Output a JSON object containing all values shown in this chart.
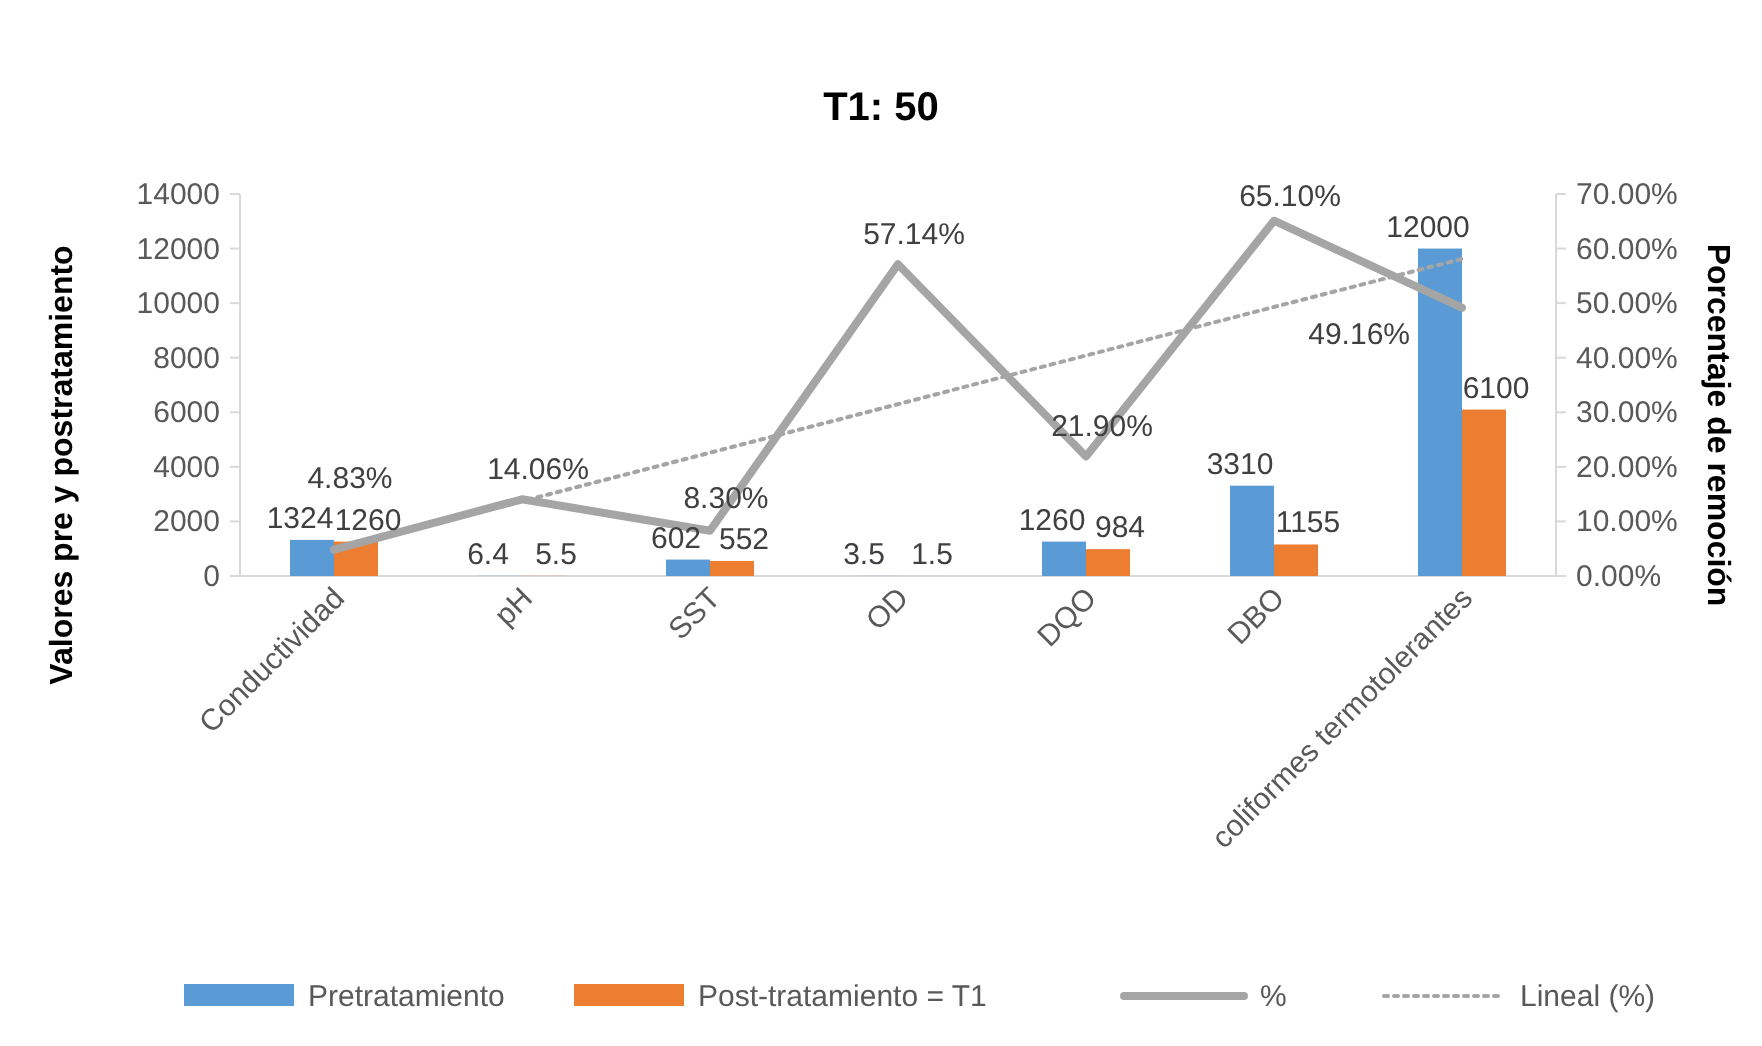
{
  "chart_data": {
    "type": "bar",
    "title": "T1: 50",
    "ylabel": "Valores pre y postratamiento",
    "y2label": "Porcentaje de remoción",
    "categories": [
      "Conductividad",
      "pH",
      "SST",
      "OD",
      "DQO",
      "DBO",
      "coliformes termotolerantes"
    ],
    "series": [
      {
        "name": "Pretratamiento",
        "color": "#5b9bd5",
        "values": [
          1324,
          6.4,
          602,
          3.5,
          1260,
          3310,
          12000
        ],
        "value_labels": [
          "1324",
          "6.4",
          "602",
          "3.5",
          "1260",
          "3310",
          "12000"
        ]
      },
      {
        "name": "Post-tratamiento = T1",
        "color": "#ed7d31",
        "values": [
          1260,
          5.5,
          552,
          1.5,
          984,
          1155,
          6100
        ],
        "value_labels": [
          "1260",
          "5.5",
          "552",
          "1.5",
          "984",
          "1155",
          "6100"
        ]
      },
      {
        "name": "%",
        "type": "line",
        "axis": "y2",
        "color": "#a5a5a5",
        "values": [
          4.83,
          14.06,
          8.3,
          57.14,
          21.9,
          65.1,
          49.16
        ],
        "value_labels": [
          "4.83%",
          "14.06%",
          "8.30%",
          "57.14%",
          "21.90%",
          "65.10%",
          "49.16%"
        ]
      },
      {
        "name": "Lineal (%)",
        "type": "line",
        "axis": "y2",
        "color": "#a5a5a5",
        "line_style": "dotted",
        "values": [
          4.9,
          13.7,
          22.6,
          31.5,
          40.4,
          49.3,
          58.1
        ]
      }
    ],
    "ylim": [
      0,
      14000
    ],
    "yticks": [
      0,
      2000,
      4000,
      6000,
      8000,
      10000,
      12000,
      14000
    ],
    "y2lim": [
      0,
      70
    ],
    "y2ticks": [
      {
        "value": 0,
        "label": "0.00%"
      },
      {
        "value": 10,
        "label": "10.00%"
      },
      {
        "value": 20,
        "label": "20.00%"
      },
      {
        "value": 30,
        "label": "30.00%"
      },
      {
        "value": 40,
        "label": "40.00%"
      },
      {
        "value": 50,
        "label": "50.00%"
      },
      {
        "value": 60,
        "label": "60.00%"
      },
      {
        "value": 70,
        "label": "70.00%"
      }
    ],
    "grid": false,
    "legend": "bottom"
  }
}
